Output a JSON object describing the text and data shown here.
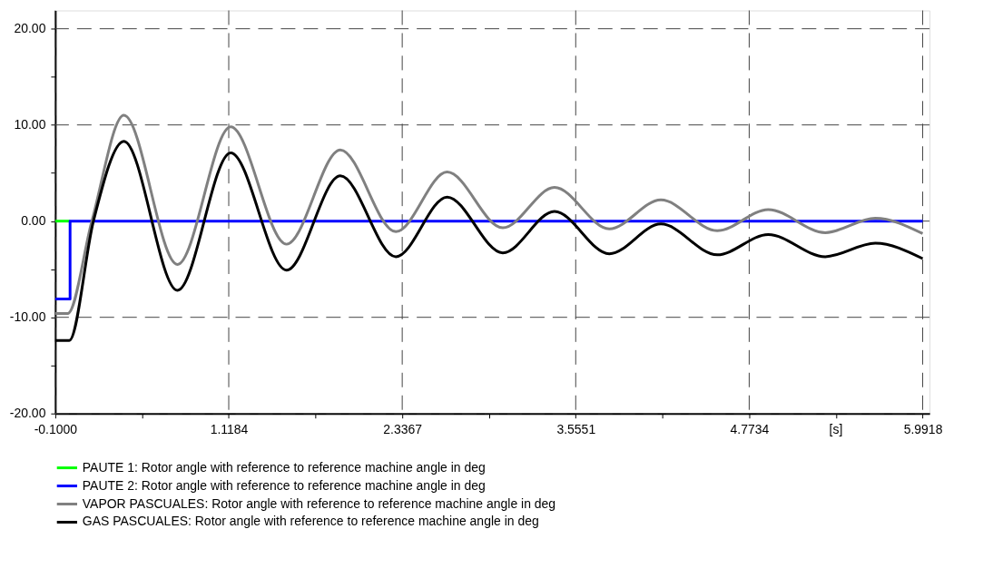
{
  "chart_data": {
    "type": "line",
    "xlabel": "[s]",
    "xlim": [
      -0.1,
      6.04
    ],
    "ylim": [
      -20,
      21.9
    ],
    "xticks": [
      {
        "value": -0.1,
        "label": "-0.1000"
      },
      {
        "value": 0.5092,
        "label": null
      },
      {
        "value": 1.1184,
        "label": "1.1184"
      },
      {
        "value": 1.7276,
        "label": null
      },
      {
        "value": 2.3367,
        "label": "2.3367"
      },
      {
        "value": 2.9459,
        "label": null
      },
      {
        "value": 3.5551,
        "label": "3.5551"
      },
      {
        "value": 4.1643,
        "label": null
      },
      {
        "value": 4.7734,
        "label": "4.7734"
      },
      {
        "value": 5.3826,
        "label": null
      },
      {
        "value": 5.9918,
        "label": "5.9918"
      }
    ],
    "yticks": [
      {
        "value": -20,
        "label": "-20.00"
      },
      {
        "value": -15,
        "label": null
      },
      {
        "value": -10,
        "label": "-10.00"
      },
      {
        "value": -5,
        "label": null
      },
      {
        "value": 0,
        "label": "0.00"
      },
      {
        "value": 5,
        "label": null
      },
      {
        "value": 10,
        "label": "10.00"
      },
      {
        "value": 15,
        "label": null
      },
      {
        "value": 20,
        "label": "20.00"
      }
    ],
    "grid": true,
    "legend": "bottom",
    "marker": "none",
    "line_style": "solid",
    "series": [
      {
        "name": "PAUTE 1: Rotor angle with reference to reference machine angle in deg",
        "color": "#00ff00",
        "x": [
          -0.1,
          0.004
        ],
        "values": [
          0,
          0
        ]
      },
      {
        "name": "PAUTE 2: Rotor angle with reference to reference machine angle in deg",
        "color": "#0000ff",
        "x": [
          -0.1,
          0.004,
          0.004,
          5.9918
        ],
        "values": [
          -8.1,
          -8.1,
          0,
          0
        ]
      },
      {
        "name": "VAPOR PASCUALES: Rotor angle with reference to reference machine angle in deg",
        "color": "#808080",
        "x": [
          -0.1,
          -0.012,
          0.157,
          0.382,
          0.758,
          1.132,
          1.524,
          1.902,
          2.292,
          2.652,
          3.043,
          3.406,
          3.791,
          4.153,
          4.549,
          4.907,
          5.308,
          5.659,
          5.9918
        ],
        "values": [
          -9.6,
          -9.6,
          0,
          11.0,
          -4.5,
          9.8,
          -2.4,
          7.4,
          -1.1,
          5.1,
          -0.7,
          3.5,
          -0.8,
          2.2,
          -1.0,
          1.2,
          -1.2,
          0.3,
          -1.3
        ]
      },
      {
        "name": "GAS PASCUALES: Rotor angle with reference to reference machine angle in deg",
        "color": "#000000",
        "x": [
          -0.1,
          -0.001,
          0.168,
          0.382,
          0.758,
          1.132,
          1.524,
          1.902,
          2.292,
          2.652,
          3.043,
          3.406,
          3.791,
          4.153,
          4.549,
          4.907,
          5.308,
          5.659,
          5.9918
        ],
        "values": [
          -12.4,
          -12.4,
          0,
          8.3,
          -7.2,
          7.1,
          -5.1,
          4.7,
          -3.7,
          2.5,
          -3.3,
          1.0,
          -3.4,
          -0.3,
          -3.5,
          -1.4,
          -3.7,
          -2.3,
          -3.9
        ]
      }
    ]
  }
}
